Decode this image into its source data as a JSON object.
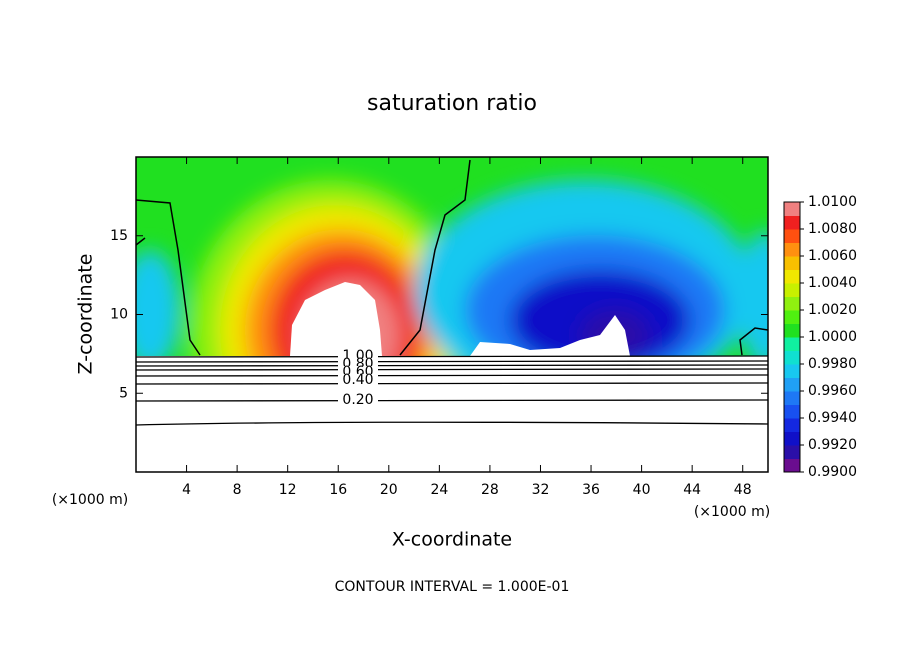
{
  "chart_data": {
    "type": "contour",
    "title": "saturation ratio",
    "x_label": "X-coordinate",
    "y_label": "Z-coordinate",
    "x_unit_labels": [
      "(×1000 m)",
      "(×1000 m)"
    ],
    "footer": "CONTOUR INTERVAL = 1.000E-01",
    "xlim": [
      0,
      50
    ],
    "xticks": [
      4,
      8,
      12,
      16,
      20,
      24,
      28,
      32,
      36,
      40,
      44,
      48
    ],
    "ylim": [
      0,
      20
    ],
    "yticks": [
      5,
      10,
      15
    ],
    "contour_labels": [
      "1.00",
      "0.80",
      "0.60",
      "0.40",
      "0.20"
    ],
    "colorbar": {
      "lim": [
        0.99,
        1.01
      ],
      "ticks": [
        {
          "value": 1.01,
          "label": "1.0100"
        },
        {
          "value": 1.008,
          "label": "1.0080"
        },
        {
          "value": 1.006,
          "label": "1.0060"
        },
        {
          "value": 1.004,
          "label": "1.0040"
        },
        {
          "value": 1.002,
          "label": "1.0020"
        },
        {
          "value": 1.0,
          "label": "1.0000"
        },
        {
          "value": 0.998,
          "label": "0.9980"
        },
        {
          "value": 0.996,
          "label": "0.9960"
        },
        {
          "value": 0.994,
          "label": "0.9940"
        },
        {
          "value": 0.992,
          "label": "0.9920"
        },
        {
          "value": 0.99,
          "label": "0.9900"
        }
      ],
      "colors": [
        "#6a0d8f",
        "#2a0fa8",
        "#1010c8",
        "#1428e0",
        "#1850f0",
        "#1e78f5",
        "#20a0f5",
        "#18c8f0",
        "#10e0d0",
        "#10f0a0",
        "#20e020",
        "#50f010",
        "#90f010",
        "#c8f000",
        "#f0e800",
        "#f8c000",
        "#ff9010",
        "#ff5010",
        "#f02020",
        "#f08080"
      ]
    }
  }
}
